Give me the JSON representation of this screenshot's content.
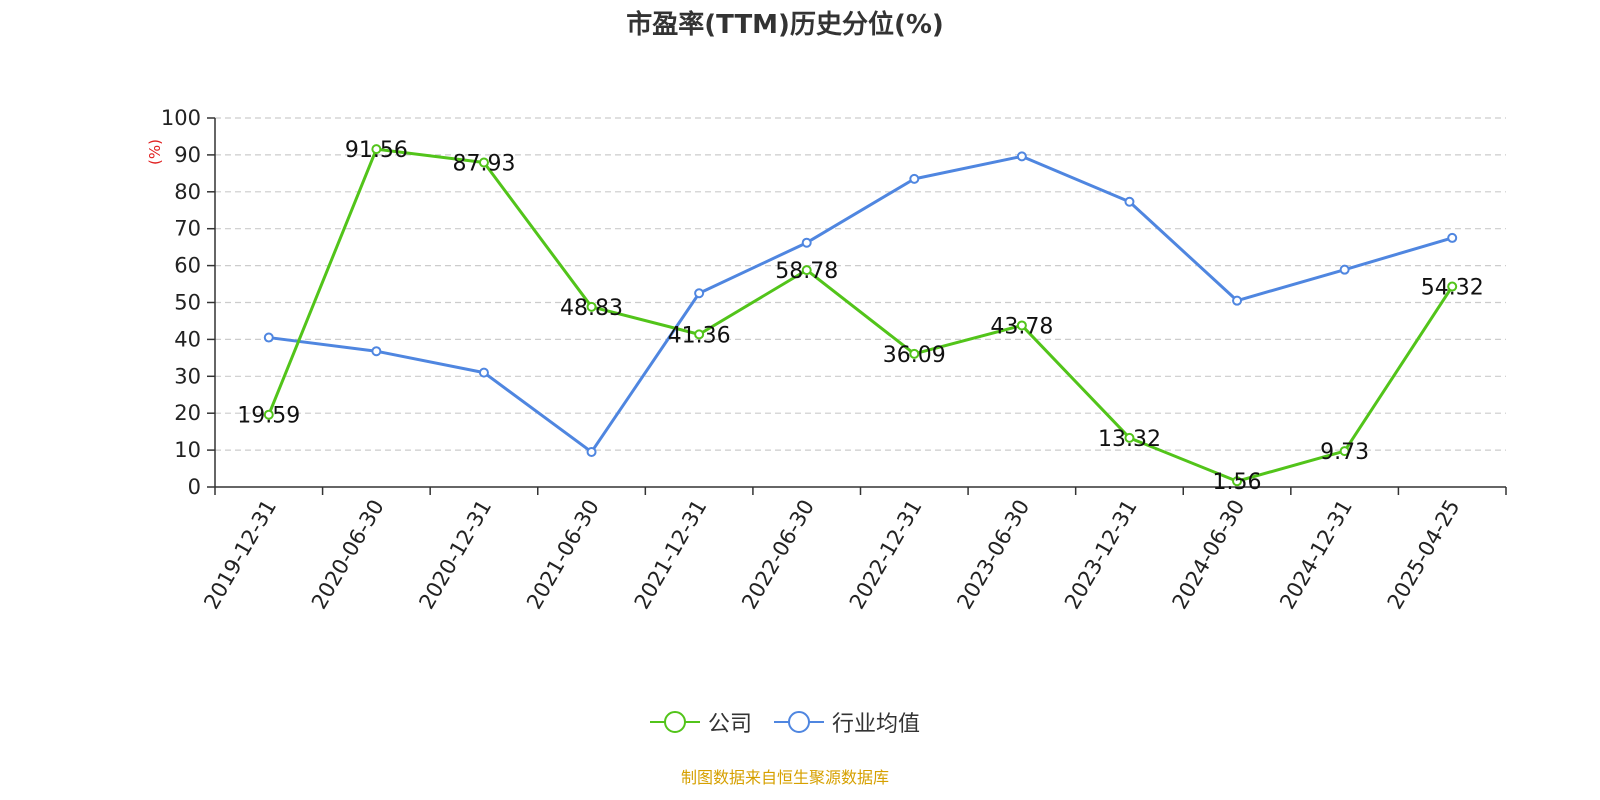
{
  "chart_data": {
    "type": "line",
    "title": "市盈率(TTM)历史分位(%)",
    "ylabel": "(%)",
    "ylim": [
      0,
      100
    ],
    "yticks": [
      0,
      10,
      20,
      30,
      40,
      50,
      60,
      70,
      80,
      90,
      100
    ],
    "grid": true,
    "legend_position": "bottom",
    "categories": [
      "2019-12-31",
      "2020-06-30",
      "2020-12-31",
      "2021-06-30",
      "2021-12-31",
      "2022-06-30",
      "2022-12-31",
      "2023-06-30",
      "2023-12-31",
      "2024-06-30",
      "2024-12-31",
      "2025-04-25"
    ],
    "series": [
      {
        "name": "公司",
        "color": "#52c41a",
        "values": [
          19.59,
          91.56,
          87.93,
          48.83,
          41.36,
          58.78,
          36.09,
          43.78,
          13.32,
          1.56,
          9.73,
          54.32
        ],
        "labels": [
          "19.59",
          "91.56",
          "87.93",
          "48.83",
          "41.36",
          "58.78",
          "36.09",
          "43.78",
          "13.32",
          "1.56",
          "9.73",
          "54.32"
        ]
      },
      {
        "name": "行业均值",
        "color": "#4f86e0",
        "values": [
          40.5,
          36.8,
          31.0,
          9.5,
          52.5,
          66.2,
          83.5,
          89.6,
          77.3,
          50.5,
          58.9,
          67.5
        ]
      }
    ]
  },
  "footer": {
    "source": "制图数据来自恒生聚源数据库"
  }
}
